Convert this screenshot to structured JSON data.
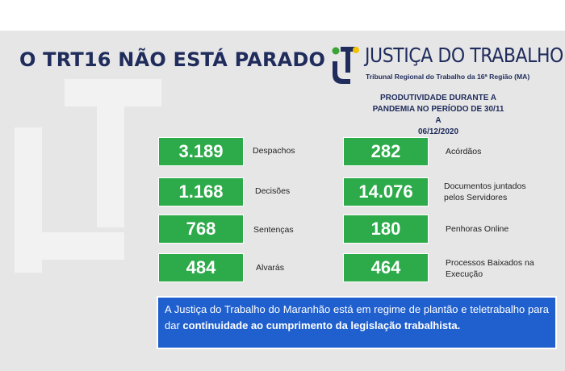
{
  "headline": "O TRT16 NÃO ESTÁ PARADO",
  "logo": {
    "icon": "justica-do-trabalho-logo-icon",
    "title": "JUSTIÇA DO TRABALHO",
    "subtitle": "Tribunal Regional do Trabalho da 16ª Região  (MA)"
  },
  "productivity": {
    "line1": "PRODUTIVIDADE DURANTE A",
    "line2": "PANDEMIA NO PERÍODO DE 30/11 A",
    "line3": "06/12/2020"
  },
  "stats_left": [
    {
      "value": "3.189",
      "label": "Despachos"
    },
    {
      "value": "1.168",
      "label": "Decisões"
    },
    {
      "value": "768",
      "label": "Sentenças"
    },
    {
      "value": "484",
      "label": "Alvarás"
    }
  ],
  "stats_right": [
    {
      "value": "282",
      "label": "Acórdãos"
    },
    {
      "value": "14.076",
      "label_line1": "Documentos juntados",
      "label_line2": "pelos Servidores"
    },
    {
      "value": "180",
      "label": "Penhoras Online"
    },
    {
      "value": "464",
      "label_line1": "Processos Baixados na",
      "label_line2": "Execução"
    }
  ],
  "info": {
    "text_regular": "A Justiça do Trabalho do Maranhão está em regime de plantão e teletrabalho para dar ",
    "text_bold": "continuidade ao cumprimento da legislação trabalhista."
  },
  "colors": {
    "navy": "#1f2c5c",
    "green_box": "#2daa4a",
    "blue_info": "#1f5fce",
    "background": "#e6e6e6",
    "logo_green": "#3aa335",
    "logo_yellow": "#f2c200"
  }
}
